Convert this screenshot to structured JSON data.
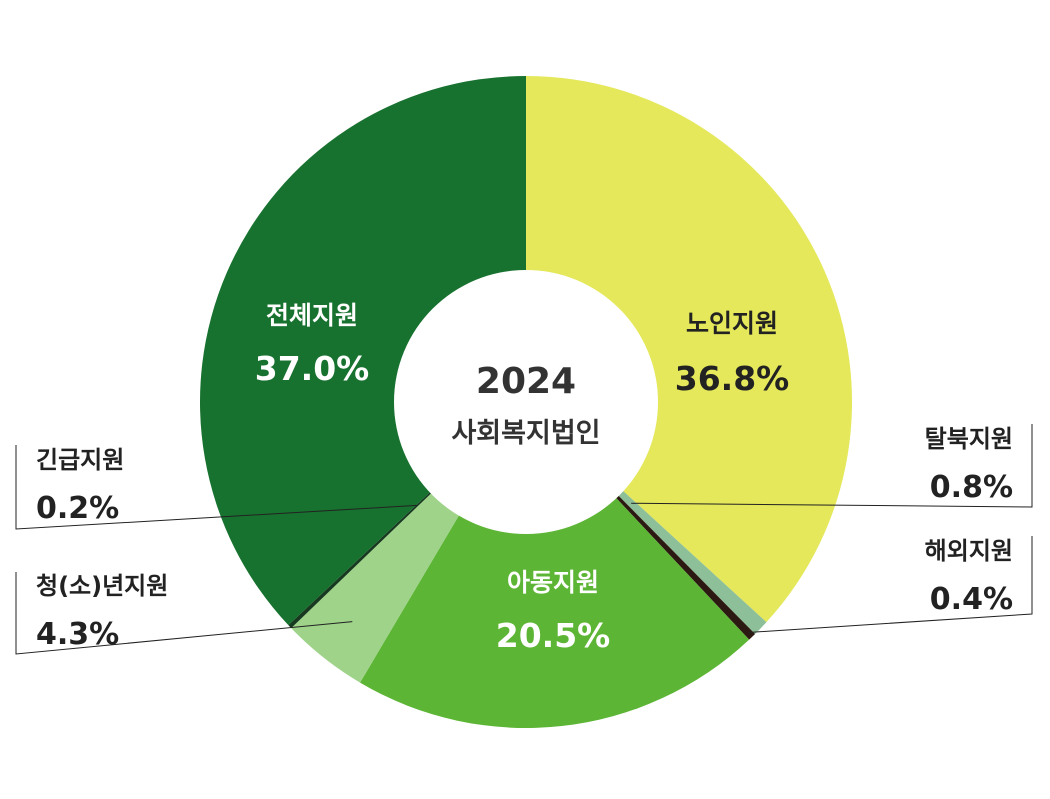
{
  "chart_data": {
    "type": "pie",
    "center_label": {
      "year": "2024",
      "title": "사회복지법인"
    },
    "slices": [
      {
        "name": "노인지원",
        "value": 36.8,
        "label": "36.8%",
        "color": "#e4e85a"
      },
      {
        "name": "탈북지원",
        "value": 0.8,
        "label": "0.8%",
        "color": "#8dbf98"
      },
      {
        "name": "해외지원",
        "value": 0.4,
        "label": "0.4%",
        "color": "#2c1a12"
      },
      {
        "name": "아동지원",
        "value": 20.5,
        "label": "20.5%",
        "color": "#5db535"
      },
      {
        "name": "청(소)년지원",
        "value": 4.3,
        "label": "4.3%",
        "color": "#9ed389"
      },
      {
        "name": "긴급지원",
        "value": 0.2,
        "label": "0.2%",
        "color": "#16391f"
      },
      {
        "name": "전체지원",
        "value": 37.0,
        "label": "37.0%",
        "color": "#18722f"
      }
    ]
  }
}
